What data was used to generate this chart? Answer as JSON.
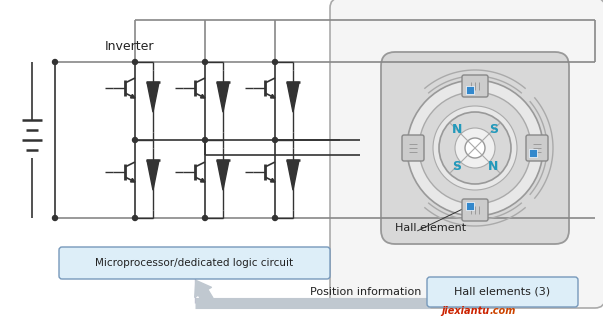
{
  "bg_color": "#ffffff",
  "inverter_label": "Inverter",
  "microprocessor_label": "Microprocessor/dedicated logic circuit",
  "position_info_label": "Position information",
  "hall_element_label": "Hall element",
  "hall_elements3_label": "Hall elements (3)",
  "watermark1": "jiexiantu",
  "watermark2": ".com",
  "line_color": "#333333",
  "gray_line_color": "#888888",
  "motor_outer_bg": "#f2f2f2",
  "motor_housing_fill": "#d8d8d8",
  "motor_housing_edge": "#999999",
  "stator_ring_fill": "#e0e0e0",
  "stator_ring_edge": "#aaaaaa",
  "rotor_fill": "#d4d4d4",
  "rotor_edge": "#888888",
  "rotor_center_fill": "#f0f0f0",
  "coil_fill": "#c8c8c8",
  "coil_edge": "#888888",
  "hall_dot_color": "#3388cc",
  "sns_color": "#2299bb",
  "box_fill": "#ddeef8",
  "box_edge": "#7799bb",
  "arrow_fill": "#bbccdd",
  "label_color": "#222222",
  "wm_color1": "#cc2200",
  "wm_color2": "#cc4400",
  "outer_box_edge": "#aaaaaa",
  "outer_box_fill": "#f5f5f5"
}
